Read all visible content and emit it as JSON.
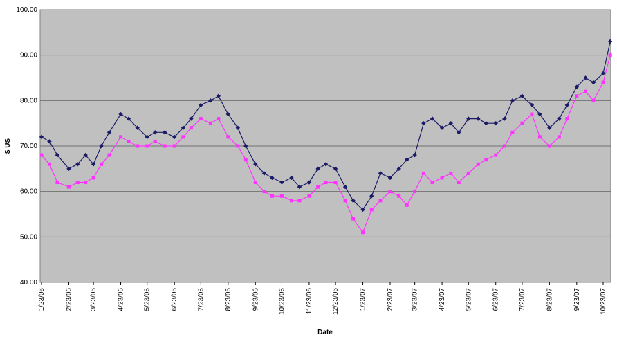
{
  "chart_data": {
    "type": "scatter",
    "xlabel": "Date",
    "ylabel": "$ US",
    "ylim": [
      40,
      100
    ],
    "yticks": [
      "40.00",
      "50.00",
      "60.00",
      "70.00",
      "80.00",
      "90.00",
      "100.00"
    ],
    "xticks": [
      "1/23/06",
      "2/23/06",
      "3/23/06",
      "4/23/06",
      "5/23/06",
      "6/23/06",
      "7/23/06",
      "8/23/06",
      "9/23/06",
      "10/23/06",
      "11/23/06",
      "12/23/06",
      "1/23/07",
      "2/23/07",
      "3/23/07",
      "4/23/07",
      "5/23/07",
      "6/23/07",
      "7/23/07",
      "8/23/07",
      "9/23/07",
      "10/23/07"
    ],
    "grid": true,
    "plot_background": "#c0c0c0",
    "series": [
      {
        "color": "#1a1a66",
        "marker": "diamond",
        "x": [
          "1/23/06",
          "2/1/06",
          "2/10/06",
          "2/23/06",
          "3/5/06",
          "3/14/06",
          "3/23/06",
          "4/1/06",
          "4/10/06",
          "4/23/06",
          "5/2/06",
          "5/12/06",
          "5/23/06",
          "6/1/06",
          "6/12/06",
          "6/23/06",
          "7/3/06",
          "7/12/06",
          "7/23/06",
          "8/3/06",
          "8/12/06",
          "8/23/06",
          "9/3/06",
          "9/12/06",
          "9/23/06",
          "10/3/06",
          "10/12/06",
          "10/23/06",
          "11/3/06",
          "11/12/06",
          "11/23/06",
          "12/3/06",
          "12/12/06",
          "12/23/06",
          "1/3/07",
          "1/12/07",
          "1/23/07",
          "2/2/07",
          "2/12/07",
          "2/23/07",
          "3/5/07",
          "3/14/07",
          "3/23/07",
          "4/2/07",
          "4/12/07",
          "4/23/07",
          "5/3/07",
          "5/12/07",
          "5/23/07",
          "6/3/07",
          "6/12/07",
          "6/23/07",
          "7/3/07",
          "7/12/07",
          "7/23/07",
          "8/3/07",
          "8/12/07",
          "8/23/07",
          "9/3/07",
          "9/12/07",
          "9/23/07",
          "10/3/07",
          "10/12/07",
          "10/23/07",
          "10/31/07"
        ],
        "y": [
          72,
          71,
          68,
          65,
          66,
          68,
          66,
          70,
          73,
          77,
          76,
          74,
          72,
          73,
          73,
          72,
          74,
          76,
          79,
          80,
          81,
          77,
          74,
          70,
          66,
          64,
          63,
          62,
          63,
          61,
          62,
          65,
          66,
          65,
          61,
          58,
          56,
          59,
          64,
          63,
          65,
          67,
          68,
          75,
          76,
          74,
          75,
          73,
          76,
          76,
          75,
          75,
          76,
          80,
          81,
          79,
          77,
          74,
          76,
          79,
          83,
          85,
          84,
          86,
          93
        ]
      },
      {
        "color": "#ff33ff",
        "marker": "square",
        "x": [
          "1/23/06",
          "2/1/06",
          "2/10/06",
          "2/23/06",
          "3/5/06",
          "3/14/06",
          "3/23/06",
          "4/1/06",
          "4/10/06",
          "4/23/06",
          "5/2/06",
          "5/12/06",
          "5/23/06",
          "6/1/06",
          "6/12/06",
          "6/23/06",
          "7/3/06",
          "7/12/06",
          "7/23/06",
          "8/3/06",
          "8/12/06",
          "8/23/06",
          "9/3/06",
          "9/12/06",
          "9/23/06",
          "10/3/06",
          "10/12/06",
          "10/23/06",
          "11/3/06",
          "11/12/06",
          "11/23/06",
          "12/3/06",
          "12/12/06",
          "12/23/06",
          "1/3/07",
          "1/12/07",
          "1/23/07",
          "2/2/07",
          "2/12/07",
          "2/23/07",
          "3/5/07",
          "3/14/07",
          "3/23/07",
          "4/2/07",
          "4/12/07",
          "4/23/07",
          "5/3/07",
          "5/12/07",
          "5/23/07",
          "6/3/07",
          "6/12/07",
          "6/23/07",
          "7/3/07",
          "7/12/07",
          "7/23/07",
          "8/3/07",
          "8/12/07",
          "8/23/07",
          "9/3/07",
          "9/12/07",
          "9/23/07",
          "10/3/07",
          "10/12/07",
          "10/23/07",
          "10/31/07"
        ],
        "y": [
          68,
          66,
          62,
          61,
          62,
          62,
          63,
          66,
          68,
          72,
          71,
          70,
          70,
          71,
          70,
          70,
          72,
          74,
          76,
          75,
          76,
          72,
          70,
          67,
          62,
          60,
          59,
          59,
          58,
          58,
          59,
          61,
          62,
          62,
          58,
          54,
          51,
          56,
          58,
          60,
          59,
          57,
          60,
          64,
          62,
          63,
          64,
          62,
          64,
          66,
          67,
          68,
          70,
          73,
          75,
          77,
          72,
          70,
          72,
          76,
          81,
          82,
          80,
          84,
          90
        ]
      }
    ]
  }
}
